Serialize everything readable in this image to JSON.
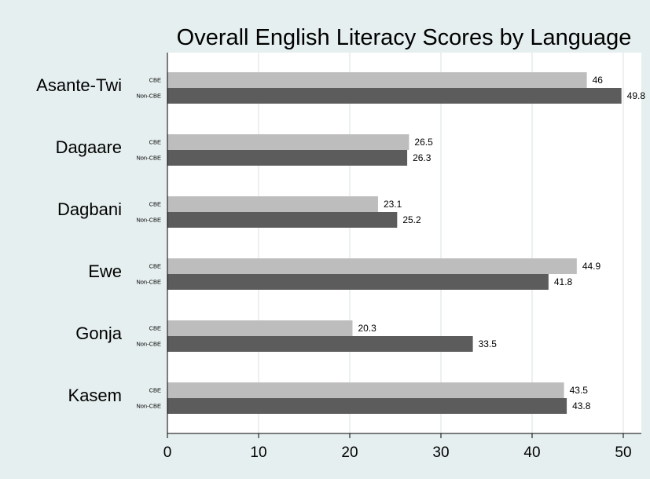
{
  "chart_data": {
    "type": "bar",
    "orientation": "horizontal",
    "title": "Overall English Literacy Scores by Language",
    "xlabel": "",
    "ylabel": "",
    "xlim": [
      0,
      52
    ],
    "ticks": [
      0,
      10,
      20,
      30,
      40,
      50
    ],
    "tick_labels": [
      "0",
      "10",
      "20",
      "30",
      "40",
      "50"
    ],
    "grid": "vertical",
    "legend": "none",
    "categories": [
      "Asante-Twi",
      "Dagaare",
      "Dagbani",
      "Ewe",
      "Gonja",
      "Kasem"
    ],
    "series": [
      {
        "name": "CBE",
        "color": "#bdbdbd",
        "values": [
          46,
          26.5,
          23.1,
          44.9,
          20.3,
          43.5
        ],
        "value_labels": [
          "46",
          "26.5",
          "23.1",
          "44.9",
          "20.3",
          "43.5"
        ]
      },
      {
        "name": "Non-CBE",
        "color": "#5c5c5c",
        "values": [
          49.8,
          26.3,
          25.2,
          41.8,
          33.5,
          43.8
        ],
        "value_labels": [
          "49.8",
          "26.3",
          "25.2",
          "41.8",
          "33.5",
          "43.8"
        ]
      }
    ],
    "colors": {
      "background": "#e6efef",
      "plot_background": "#ffffff",
      "grid": "#e6ecec",
      "axis": "#000000",
      "text": "#000000"
    }
  }
}
